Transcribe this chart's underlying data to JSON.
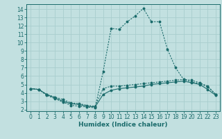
{
  "xlabel": "Humidex (Indice chaleur)",
  "background_color": "#c2e0e0",
  "grid_color": "#a8cece",
  "line_color": "#1a6b6b",
  "xlim": [
    -0.5,
    23.5
  ],
  "ylim": [
    1.8,
    14.6
  ],
  "yticks": [
    2,
    3,
    4,
    5,
    6,
    7,
    8,
    9,
    10,
    11,
    12,
    13,
    14
  ],
  "xticks": [
    0,
    1,
    2,
    3,
    4,
    5,
    6,
    7,
    8,
    9,
    10,
    11,
    12,
    13,
    14,
    15,
    16,
    17,
    18,
    19,
    20,
    21,
    22,
    23
  ],
  "line1_x": [
    0,
    1,
    2,
    3,
    4,
    5,
    6,
    7,
    8,
    9,
    10,
    11,
    12,
    13,
    14,
    15,
    16,
    17,
    18,
    19,
    20,
    21,
    22,
    23
  ],
  "line1_y": [
    4.5,
    4.4,
    3.8,
    3.5,
    3.2,
    2.8,
    2.7,
    2.5,
    2.4,
    4.5,
    4.8,
    4.8,
    4.9,
    5.0,
    5.1,
    5.2,
    5.3,
    5.4,
    5.5,
    5.6,
    5.3,
    5.1,
    4.7,
    3.8
  ],
  "line2_x": [
    0,
    1,
    2,
    3,
    4,
    5,
    6,
    7,
    8,
    9,
    10,
    11,
    12,
    13,
    14,
    15,
    16,
    17,
    18,
    19,
    20,
    21,
    22,
    23
  ],
  "line2_y": [
    4.5,
    4.4,
    3.8,
    3.4,
    3.0,
    2.7,
    2.6,
    2.4,
    2.3,
    3.8,
    4.3,
    4.5,
    4.6,
    4.7,
    4.8,
    5.0,
    5.1,
    5.2,
    5.3,
    5.4,
    5.2,
    5.0,
    4.4,
    3.7
  ],
  "line3_x": [
    0,
    1,
    2,
    3,
    4,
    5,
    6,
    7,
    8,
    9,
    10,
    11,
    12,
    13,
    14,
    15,
    16,
    17,
    18,
    19,
    20,
    21,
    22,
    23
  ],
  "line3_y": [
    4.5,
    4.4,
    3.7,
    3.3,
    2.9,
    2.5,
    2.4,
    2.3,
    2.2,
    6.5,
    11.7,
    11.6,
    12.5,
    13.2,
    14.1,
    12.5,
    12.5,
    9.2,
    7.0,
    5.6,
    5.5,
    5.2,
    4.8,
    3.8
  ]
}
